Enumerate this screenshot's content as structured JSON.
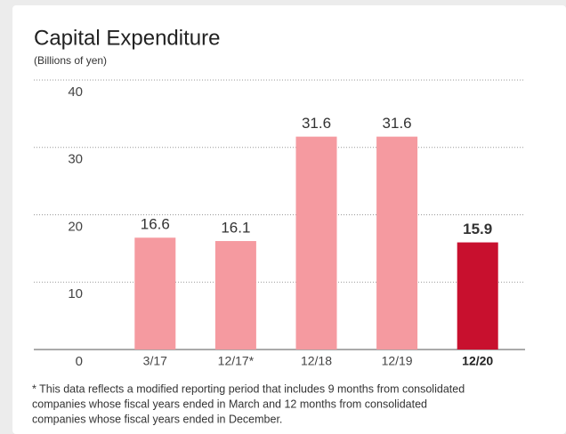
{
  "chart_data": {
    "type": "bar",
    "title": "Capital Expenditure",
    "subtitle": "(Billions of yen)",
    "categories": [
      "3/17",
      "12/17*",
      "12/18",
      "12/19",
      "12/20"
    ],
    "values": [
      16.6,
      16.1,
      31.6,
      31.6,
      15.9
    ],
    "colors": [
      "#f59aa0",
      "#f59aa0",
      "#f59aa0",
      "#f59aa0",
      "#c8102e"
    ],
    "highlight": 4,
    "ylim": [
      0,
      40
    ],
    "yticks": [
      0,
      10,
      20,
      30,
      40
    ],
    "grid": true,
    "note": [
      "* This data reflects a modified reporting period that includes 9 months from consolidated",
      "companies whose fiscal years ended in March and 12 months from consolidated",
      "companies whose fiscal years ended in December."
    ]
  }
}
